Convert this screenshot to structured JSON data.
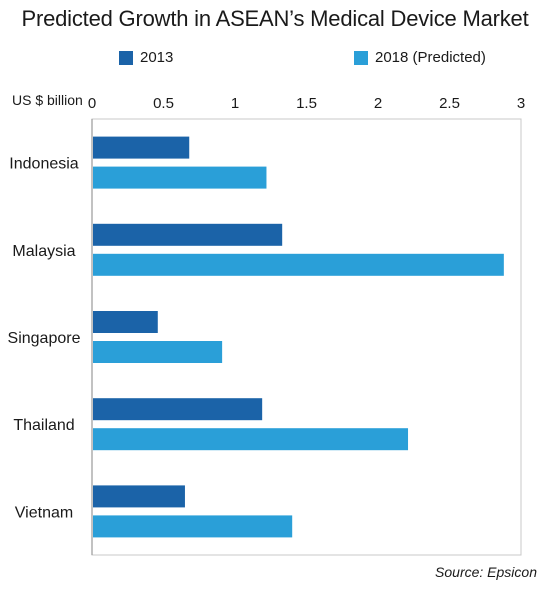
{
  "chart_data": {
    "type": "bar",
    "orientation": "horizontal",
    "title": "Predicted Growth in ASEAN’s Medical Device Market",
    "xlabel": "US $ billion",
    "ylabel": "",
    "xlim": [
      0,
      3
    ],
    "x_ticks": [
      "0",
      "0.5",
      "1",
      "1.5",
      "2",
      "2.5",
      "3"
    ],
    "grid": false,
    "legend_position": "top",
    "categories": [
      "Indonesia",
      "Malaysia",
      "Singapore",
      "Thailand",
      "Vietnam"
    ],
    "series": [
      {
        "name": "2013",
        "color": "#1b63a8",
        "values": [
          0.68,
          1.33,
          0.46,
          1.19,
          0.65
        ]
      },
      {
        "name": "2018 (Predicted)",
        "color": "#2a9fd8",
        "values": [
          1.22,
          2.88,
          0.91,
          2.21,
          1.4
        ]
      }
    ],
    "source": "Source: Epsicon"
  }
}
